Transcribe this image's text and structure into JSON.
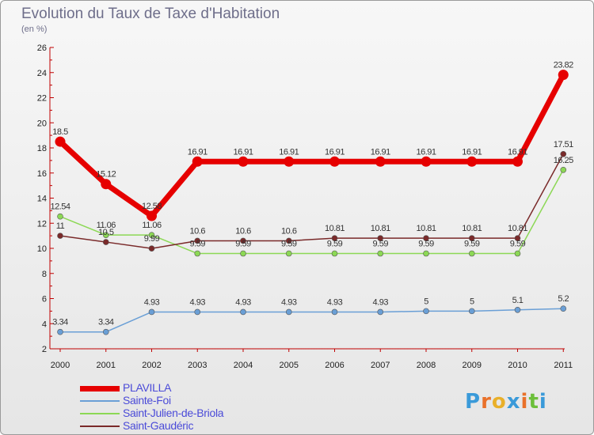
{
  "title": "Evolution du Taux de Taxe d'Habitation",
  "unit_label": "(en %)",
  "logo": {
    "letters": [
      "P",
      "r",
      "o",
      "x",
      "i",
      "t",
      "i"
    ],
    "colors": [
      "#3a9ad9",
      "#e9712a",
      "#e9b02a",
      "#3a9ad9",
      "#e9712a",
      "#6cbf3a",
      "#3a9ad9"
    ]
  },
  "chart_data": {
    "type": "line",
    "title": "Evolution du Taux de Taxe d'Habitation",
    "ylabel": "(en %)",
    "xlabel": "",
    "ylim": [
      2,
      26
    ],
    "yticks": [
      2,
      4,
      6,
      8,
      10,
      12,
      14,
      16,
      18,
      20,
      22,
      24,
      26
    ],
    "categories": [
      "2000",
      "2001",
      "2002",
      "2003",
      "2004",
      "2005",
      "2006",
      "2007",
      "2008",
      "2009",
      "2010",
      "2011"
    ],
    "series": [
      {
        "name": "Saint-Julien-de-Briola",
        "color": "#8cd855",
        "labelColor": "#333",
        "values": [
          12.54,
          11.06,
          11.06,
          9.59,
          9.59,
          9.59,
          9.59,
          9.59,
          9.59,
          9.59,
          9.59,
          16.25
        ],
        "labels": [
          "12.54",
          "11.06",
          "11.06",
          "9.59",
          "9.59",
          "9.59",
          "9.59",
          "9.59",
          "9.59",
          "9.59",
          "9.59",
          "16.25"
        ]
      },
      {
        "name": "Saint-Gaudéric",
        "color": "#7a2a2a",
        "labelColor": "#333",
        "values": [
          11,
          10.5,
          9.99,
          10.6,
          10.6,
          10.6,
          10.81,
          10.81,
          10.81,
          10.81,
          10.81,
          17.51
        ],
        "labels": [
          "11",
          "10.5",
          "9.99",
          "10.6",
          "10.6",
          "10.6",
          "10.81",
          "10.81",
          "10.81",
          "10.81",
          "10.81",
          "17.51"
        ]
      },
      {
        "name": "Sainte-Foi",
        "color": "#6a9fd6",
        "labelColor": "#333",
        "values": [
          3.34,
          3.34,
          4.93,
          4.93,
          4.93,
          4.93,
          4.93,
          4.93,
          5,
          5,
          5.1,
          5.2
        ],
        "labels": [
          "3.34",
          "3.34",
          "4.93",
          "4.93",
          "4.93",
          "4.93",
          "4.93",
          "4.93",
          "5",
          "5",
          "5.1",
          "5.2"
        ]
      },
      {
        "name": "PLAVILLA",
        "color": "#e60000",
        "labelColor": "#333",
        "values": [
          18.5,
          15.12,
          12.58,
          16.91,
          16.91,
          16.91,
          16.91,
          16.91,
          16.91,
          16.91,
          16.91,
          23.82
        ],
        "labels": [
          "18.5",
          "15.12",
          "12.58",
          "16.91",
          "16.91",
          "16.91",
          "16.91",
          "16.91",
          "16.91",
          "16.91",
          "16.91",
          "23.82"
        ]
      }
    ],
    "legend": [
      "PLAVILLA",
      "Sainte-Foi",
      "Saint-Julien-de-Briola",
      "Saint-Gaudéric"
    ],
    "legend_colors": [
      "#e60000",
      "#6a9fd6",
      "#8cd855",
      "#7a2a2a"
    ],
    "grid": false
  }
}
